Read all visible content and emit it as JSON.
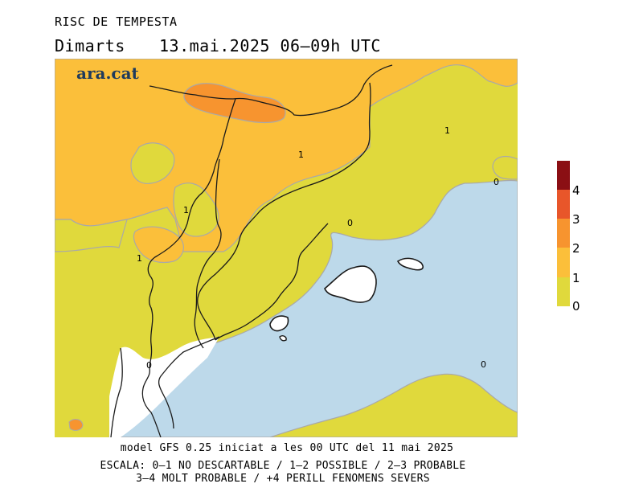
{
  "title": "RISC DE TEMPESTA",
  "subtitle": {
    "day": "Dimarts",
    "datetime": "13.mai.2025 06–09h UTC"
  },
  "brand": "ara.cat",
  "contour_labels": [
    "1",
    "1",
    "1",
    "1",
    "0",
    "0",
    "0",
    "0"
  ],
  "footer": {
    "model": "model GFS 0.25 iniciat a les 00 UTC del 11 mai 2025",
    "scale_line1": "ESCALA: 0–1 NO DESCARTABLE / 1–2 POSSIBLE / 2–3 PROBABLE",
    "scale_line2": "3–4 MOLT PROBABLE / +4 PERILL FENOMENS SEVERS"
  },
  "legend": {
    "labels": [
      "4",
      "3",
      "2",
      "1",
      "0"
    ],
    "colors": [
      "#8b0f14",
      "#e8562a",
      "#f7942f",
      "#fbbf3a",
      "#e0d93c"
    ]
  },
  "colors": {
    "sea": "#bdd9ea",
    "level_0_1": "#e0d93c",
    "level_1_2": "#fbbf3a",
    "level_2_3": "#f7942f",
    "level_3_4": "#e8562a",
    "no_data": "#ffffff",
    "brand": "#1e3a5c"
  }
}
